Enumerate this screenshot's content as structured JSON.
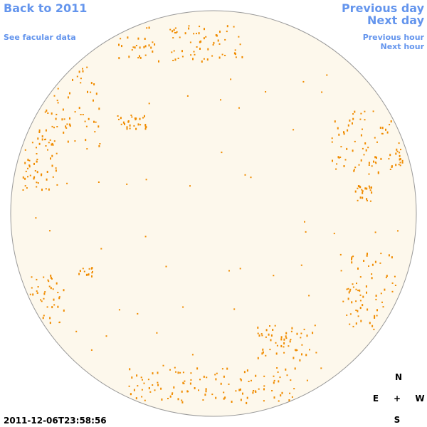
{
  "navigation": {
    "back": "Back to 2011",
    "facular_data": "See facular data",
    "previous_day": "Previous day",
    "next_day": "Next day",
    "previous_hour": "Previous hour",
    "next_hour": "Next hour"
  },
  "compass": {
    "north": "N",
    "east": "E",
    "center": "+",
    "west": "W",
    "south": "S"
  },
  "timestamp": "2011-12-06T23:58:56"
}
